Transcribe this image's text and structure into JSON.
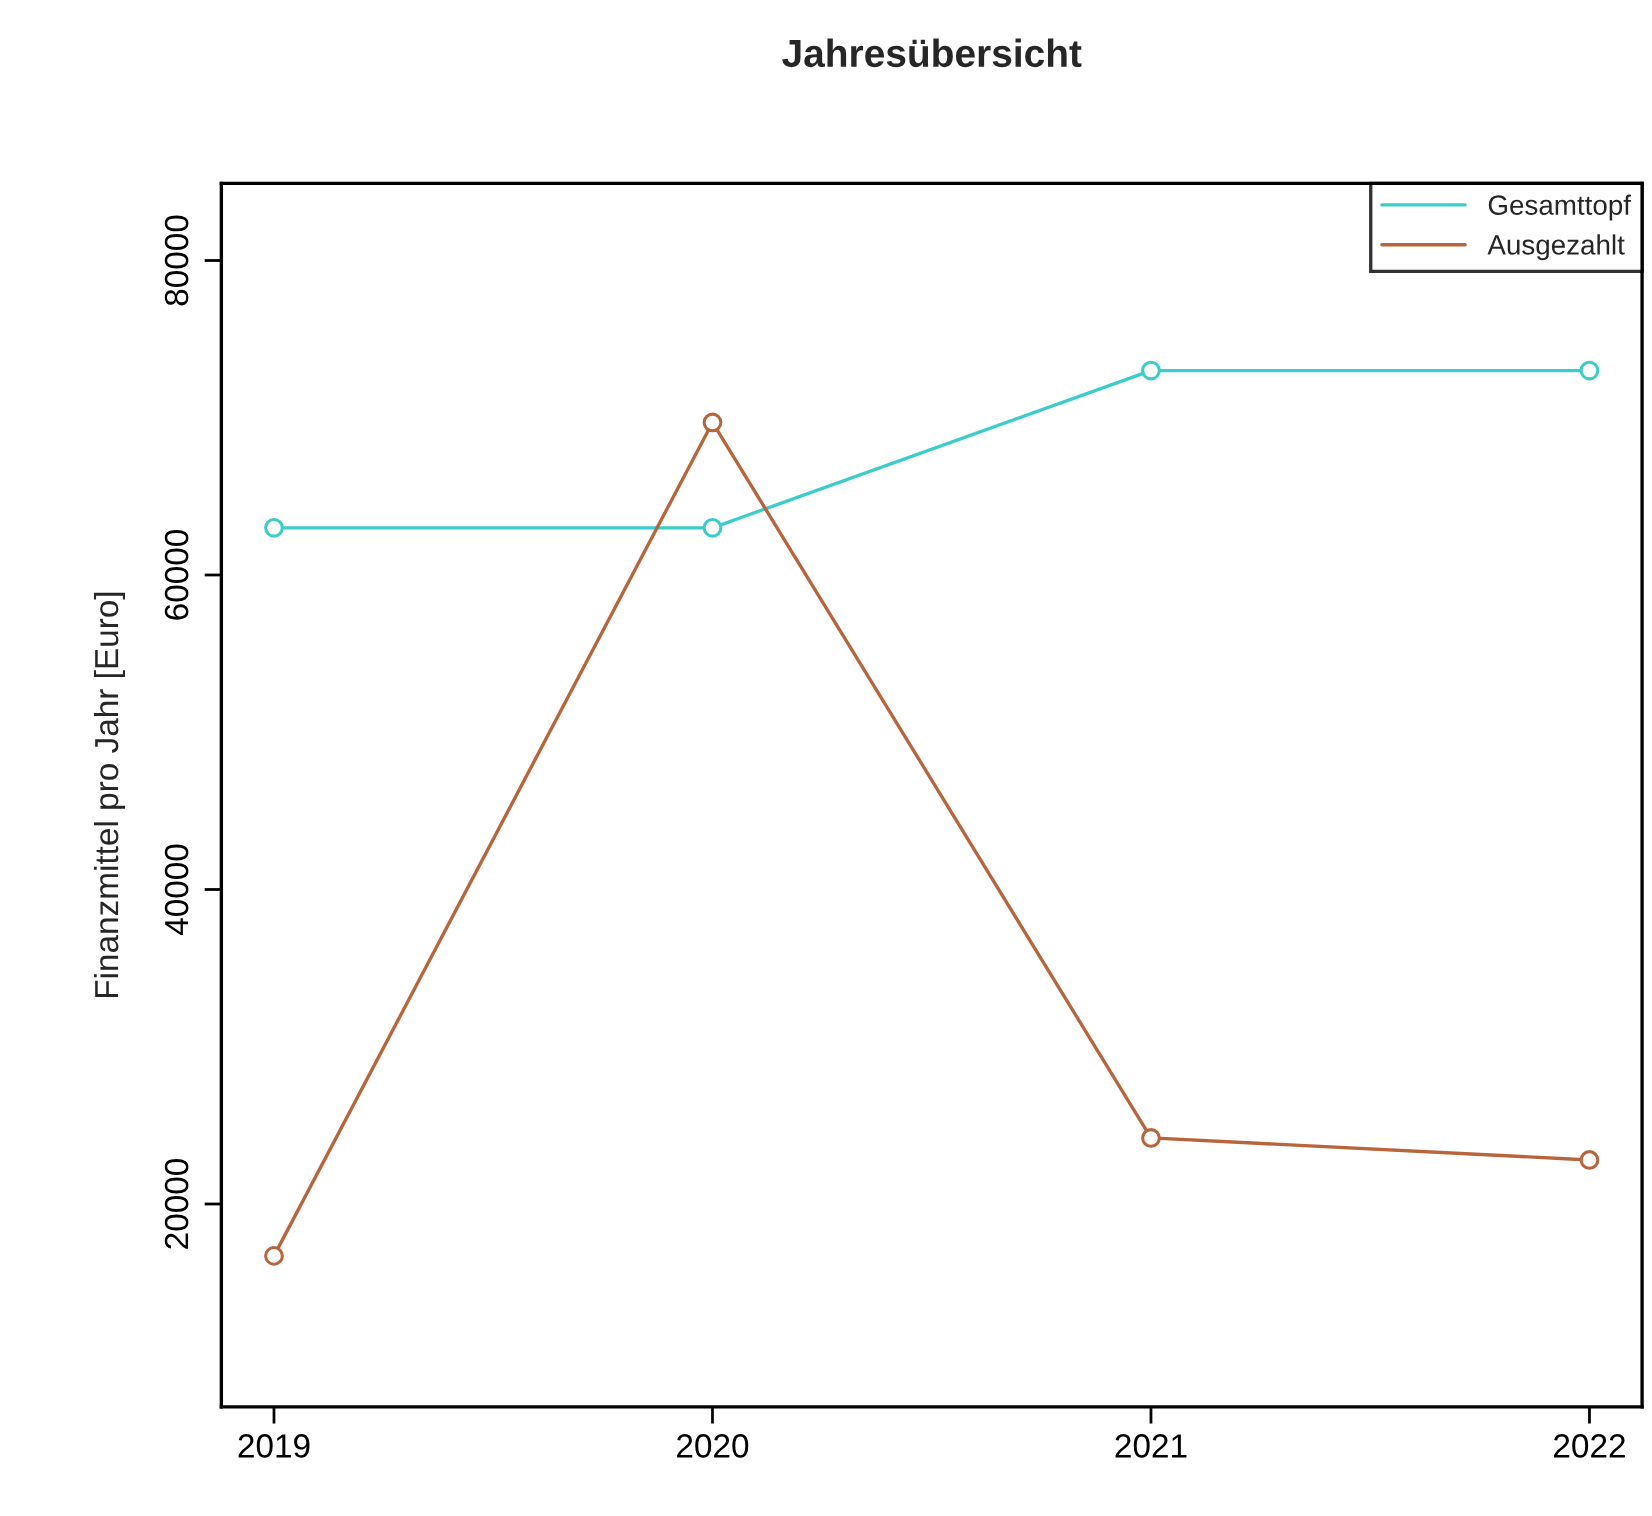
{
  "chart_data": {
    "type": "line",
    "title": "Jahresübersicht",
    "ylabel": "Finanzmittel pro Jahr [Euro]",
    "x": [
      2019,
      2020,
      2021,
      2022
    ],
    "series": [
      {
        "name": "Gesamttopf",
        "color": "#3ccccc",
        "values": [
          63000,
          63000,
          73000,
          73000
        ]
      },
      {
        "name": "Ausgezahlt",
        "color": "#b8643c",
        "values": [
          16700,
          69700,
          24200,
          22800
        ]
      }
    ],
    "xlim": [
      2018.88,
      2022.12
    ],
    "xticks": [
      2019,
      2020,
      2021,
      2022
    ],
    "ylim": [
      7100,
      84900
    ],
    "yticks": [
      20000,
      40000,
      60000,
      80000
    ],
    "grid": false,
    "legend": "top right",
    "marker": "circle",
    "line_style": "solid"
  }
}
